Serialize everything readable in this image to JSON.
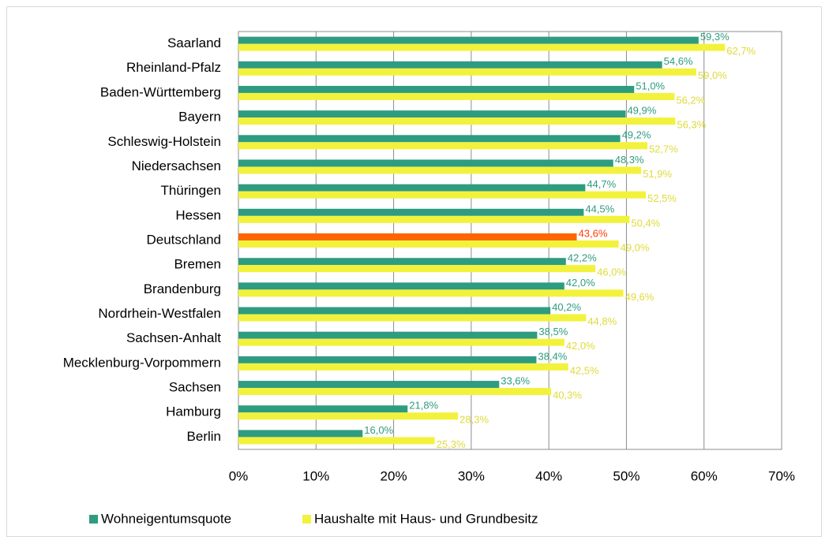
{
  "chart_data": {
    "type": "bar",
    "orientation": "horizontal",
    "categories": [
      "Saarland",
      "Rheinland-Pfalz",
      "Baden-Württemberg",
      "Bayern",
      "Schleswig-Holstein",
      "Niedersachsen",
      "Thüringen",
      "Hessen",
      "Deutschland",
      "Bremen",
      "Brandenburg",
      "Nordrhein-Westfalen",
      "Sachsen-Anhalt",
      "Mecklenburg-Vorpommern",
      "Sachsen",
      "Hamburg",
      "Berlin"
    ],
    "series": [
      {
        "name": "Wohneigentumsquote",
        "color": "#2e9c80",
        "label_color": "#2e9c80",
        "point_colors": [
          "#2e9c80",
          "#2e9c80",
          "#2e9c80",
          "#2e9c80",
          "#2e9c80",
          "#2e9c80",
          "#2e9c80",
          "#2e9c80",
          "#ff6600",
          "#2e9c80",
          "#2e9c80",
          "#2e9c80",
          "#2e9c80",
          "#2e9c80",
          "#2e9c80",
          "#2e9c80",
          "#2e9c80"
        ],
        "point_label_colors": [
          "#2e9c80",
          "#2e9c80",
          "#2e9c80",
          "#2e9c80",
          "#2e9c80",
          "#2e9c80",
          "#2e9c80",
          "#2e9c80",
          "#ff3c00",
          "#2e9c80",
          "#2e9c80",
          "#2e9c80",
          "#2e9c80",
          "#2e9c80",
          "#2e9c80",
          "#2e9c80",
          "#2e9c80"
        ],
        "values": [
          59.3,
          54.6,
          51.0,
          49.9,
          49.2,
          48.3,
          44.7,
          44.5,
          43.6,
          42.2,
          42.0,
          40.2,
          38.5,
          38.4,
          33.6,
          21.8,
          16.0
        ],
        "value_labels": [
          "59,3%",
          "54,6%",
          "51,0%",
          "49,9%",
          "49,2%",
          "48,3%",
          "44,7%",
          "44,5%",
          "43,6%",
          "42,2%",
          "42,0%",
          "40,2%",
          "38,5%",
          "38,4%",
          "33,6%",
          "21,8%",
          "16,0%"
        ]
      },
      {
        "name": "Haushalte mit Haus- und Grundbesitz",
        "color": "#f2f23c",
        "label_color": "#e0da3a",
        "values": [
          62.7,
          59.0,
          56.2,
          56.3,
          52.7,
          51.9,
          52.5,
          50.4,
          49.0,
          46.0,
          49.6,
          44.8,
          42.0,
          42.5,
          40.3,
          28.3,
          25.3
        ],
        "value_labels": [
          "62,7%",
          "59,0%",
          "56,2%",
          "56,3%",
          "52,7%",
          "51,9%",
          "52,5%",
          "50,4%",
          "49,0%",
          "46,0%",
          "49,6%",
          "44,8%",
          "42,0%",
          "42,5%",
          "40,3%",
          "28,3%",
          "25,3%"
        ]
      }
    ],
    "xlim": [
      0,
      70
    ],
    "xticks": [
      {
        "value": 0,
        "label": "0%"
      },
      {
        "value": 10,
        "label": "10%"
      },
      {
        "value": 20,
        "label": "20%"
      },
      {
        "value": 30,
        "label": "30%"
      },
      {
        "value": 40,
        "label": "40%"
      },
      {
        "value": 50,
        "label": "50%"
      },
      {
        "value": 60,
        "label": "60%"
      },
      {
        "value": 70,
        "label": "70%"
      }
    ],
    "grid": true,
    "legend": "bottom"
  }
}
